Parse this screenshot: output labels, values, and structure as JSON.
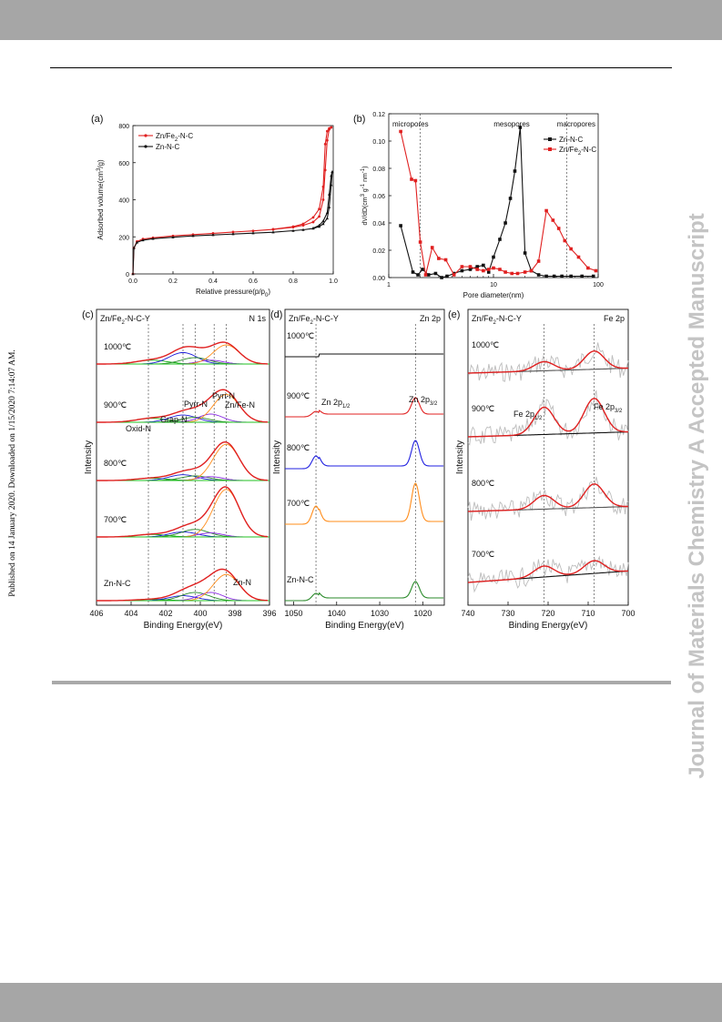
{
  "page": {
    "journal_watermark": "Journal of Materials Chemistry A Accepted Manuscript",
    "published_note": "Published on 14 January 2020. Downloaded on 1/15/2020 7:14:07 AM."
  },
  "chart_data": [
    {
      "panel": "(a)",
      "type": "line",
      "xlabel": "Relative pressure(p/p",
      "xlabel_sub": "0",
      "xlabel_end": ")",
      "ylabel": "Adsorbed volume(cm",
      "ylabel_sup": "3",
      "ylabel_end": "/g)",
      "xlim": [
        0,
        1.0
      ],
      "ylim": [
        0,
        800
      ],
      "xticks": [
        "0.0",
        "0.2",
        "0.4",
        "0.6",
        "0.8",
        "1.0"
      ],
      "yticks": [
        "0",
        "200",
        "400",
        "600",
        "800"
      ],
      "legend": [
        "Zn/Fe",
        "Zn-N-C"
      ],
      "legend_sub": [
        "2",
        ""
      ],
      "legend_end": [
        "-N-C",
        ""
      ],
      "series": [
        {
          "name": "Zn/Fe2-N-C",
          "color": "#e02020",
          "x": [
            0.0,
            0.005,
            0.02,
            0.05,
            0.1,
            0.2,
            0.3,
            0.4,
            0.5,
            0.6,
            0.7,
            0.8,
            0.85,
            0.9,
            0.93,
            0.95,
            0.96,
            0.97,
            0.98,
            0.99
          ],
          "y": [
            0,
            140,
            175,
            188,
            195,
            205,
            212,
            219,
            226,
            232,
            240,
            252,
            262,
            280,
            310,
            400,
            560,
            720,
            780,
            790
          ],
          "x_des": [
            0.99,
            0.98,
            0.97,
            0.96,
            0.95,
            0.93,
            0.9,
            0.85,
            0.8,
            0.7
          ],
          "y_des": [
            790,
            785,
            770,
            700,
            470,
            350,
            305,
            270,
            255,
            241
          ]
        },
        {
          "name": "Zn-N-C",
          "color": "#111111",
          "x": [
            0.0,
            0.005,
            0.02,
            0.05,
            0.1,
            0.2,
            0.3,
            0.4,
            0.5,
            0.6,
            0.7,
            0.8,
            0.85,
            0.9,
            0.93,
            0.95,
            0.97,
            0.98,
            0.99,
            0.995
          ],
          "y": [
            0,
            140,
            170,
            182,
            190,
            198,
            205,
            210,
            215,
            220,
            225,
            233,
            238,
            245,
            255,
            270,
            300,
            360,
            480,
            550
          ],
          "x_des": [
            0.995,
            0.99,
            0.98,
            0.97,
            0.95,
            0.93,
            0.9
          ],
          "y_des": [
            550,
            530,
            430,
            330,
            285,
            262,
            247
          ]
        }
      ]
    },
    {
      "panel": "(b)",
      "type": "line",
      "xlabel": "Pore diameter(nm)",
      "ylabel": "dV/dD(cm",
      "ylabel_rest": "g",
      "ylabel_tail": "nm",
      "xscale": "log",
      "xlim": [
        1,
        100
      ],
      "ylim": [
        0,
        0.12
      ],
      "xticks": [
        "1",
        "10",
        "100"
      ],
      "yticks": [
        "0.00",
        "0.02",
        "0.04",
        "0.06",
        "0.08",
        "0.10",
        "0.12"
      ],
      "regions": [
        "micropores",
        "mesopores",
        "macropores"
      ],
      "legend": [
        "Zn-N-C",
        "Zn/Fe",
        "-N-C"
      ],
      "legend_sub": "2",
      "series": [
        {
          "name": "Zn-N-C",
          "color": "#111111",
          "x": [
            1.3,
            1.7,
            1.9,
            2.1,
            2.4,
            2.8,
            3.2,
            3.6,
            4.2,
            5,
            6,
            7,
            8,
            9,
            10,
            11.5,
            13,
            14.5,
            16,
            18,
            20,
            23,
            27,
            32,
            38,
            45,
            55,
            70,
            90
          ],
          "y": [
            0.038,
            0.004,
            0.002,
            0.006,
            0.002,
            0.003,
            0.0,
            0.001,
            0.003,
            0.005,
            0.006,
            0.008,
            0.009,
            0.004,
            0.015,
            0.028,
            0.04,
            0.058,
            0.078,
            0.11,
            0.018,
            0.005,
            0.002,
            0.001,
            0.001,
            0.001,
            0.001,
            0.001,
            0.001
          ]
        },
        {
          "name": "Zn/Fe2-N-C",
          "color": "#e02020",
          "x": [
            1.3,
            1.65,
            1.8,
            2.0,
            2.25,
            2.6,
            3.0,
            3.5,
            4.2,
            5,
            6,
            7,
            8,
            9,
            10,
            11.5,
            13,
            15,
            17,
            20,
            23,
            27,
            32,
            37,
            42,
            48,
            55,
            65,
            80,
            95
          ],
          "y": [
            0.107,
            0.072,
            0.071,
            0.026,
            0.002,
            0.022,
            0.014,
            0.013,
            0.002,
            0.008,
            0.008,
            0.006,
            0.005,
            0.006,
            0.007,
            0.006,
            0.004,
            0.003,
            0.003,
            0.004,
            0.005,
            0.012,
            0.049,
            0.042,
            0.036,
            0.027,
            0.021,
            0.015,
            0.007,
            0.005
          ]
        }
      ]
    },
    {
      "panel": "(c)",
      "type": "line",
      "title": "Zn/Fe",
      "title_sub": "2",
      "title_end": "-N-C-Y",
      "corner_label": "N 1s",
      "xlabel": "Binding Energy(eV)",
      "ylabel": "Intensity",
      "xlim": [
        406,
        396
      ],
      "xticks": [
        "406",
        "404",
        "402",
        "400",
        "398",
        "396"
      ],
      "dashed_x": [
        403,
        401,
        400.3,
        399.2,
        398.5
      ],
      "curves": [
        "1000℃",
        "900℃",
        "800℃",
        "700℃",
        "Zn-N-C"
      ],
      "annotations": [
        "Oxid-N",
        "Grap-N",
        "Pyrr-N",
        "Pyri-N",
        "Zn/Fe-N",
        "Zn-N"
      ]
    },
    {
      "panel": "(d)",
      "type": "line",
      "title": "Zn/Fe",
      "title_sub": "2",
      "title_end": "-N-C-Y",
      "corner_label": "Zn 2p",
      "xlabel": "Binding Energy(eV)",
      "ylabel": "Intensity",
      "xlim": [
        1052,
        1015
      ],
      "xticks": [
        "1050",
        "1040",
        "1030",
        "1020"
      ],
      "dashed_x": [
        1044.8,
        1021.7
      ],
      "curves": [
        "1000℃",
        "900℃",
        "800℃",
        "700℃",
        "Zn-N-C"
      ],
      "peak_labels": [
        "Zn 2p",
        "Zn 2p"
      ],
      "peak_subs": [
        "1/2",
        "3/2"
      ],
      "series": [
        {
          "name": "1000℃",
          "color": "#111111",
          "peak_heights": [
            0,
            0
          ]
        },
        {
          "name": "900℃",
          "color": "#e02020",
          "peak_heights": [
            6,
            18
          ]
        },
        {
          "name": "800℃",
          "color": "#2020e0",
          "peak_heights": [
            14,
            28
          ]
        },
        {
          "name": "700℃",
          "color": "#ff8c1a",
          "peak_heights": [
            20,
            42
          ]
        },
        {
          "name": "Zn-N-C",
          "color": "#2a8a2a",
          "peak_heights": [
            8,
            18
          ]
        }
      ]
    },
    {
      "panel": "(e)",
      "type": "line",
      "title": "Zn/Fe",
      "title_sub": "2",
      "title_end": "-N-C-Y",
      "corner_label": "Fe 2p",
      "xlabel": "Binding Energy(eV)",
      "ylabel": "Intensity",
      "xlim": [
        740,
        700
      ],
      "xticks": [
        "740",
        "730",
        "720",
        "710",
        "700"
      ],
      "dashed_x": [
        721,
        708.5
      ],
      "curves": [
        "1000℃",
        "900℃",
        "800℃",
        "700℃"
      ],
      "peak_labels": [
        "Fe 2p",
        "Fe 2p"
      ],
      "peak_subs": [
        "1/2",
        "3/2"
      ]
    }
  ]
}
